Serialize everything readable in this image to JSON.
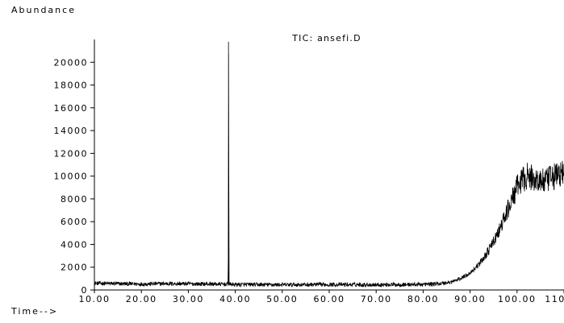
{
  "chart_data": {
    "type": "line",
    "title": "TIC: ansefi.D",
    "ylabel": "Abundance",
    "xlabel": "Time-->",
    "ylim": [
      0,
      22000
    ],
    "xlim": [
      10.0,
      110.0
    ],
    "y_ticks": [
      0,
      2000,
      4000,
      6000,
      8000,
      10000,
      12000,
      14000,
      16000,
      18000,
      20000
    ],
    "x_ticks": [
      10.0,
      20.0,
      30.0,
      40.0,
      50.0,
      60.0,
      70.0,
      80.0,
      90.0,
      100.0,
      110.0
    ],
    "x_tick_labels": [
      "10.00",
      "20.00",
      "30.00",
      "40.00",
      "50.00",
      "60.00",
      "70.00",
      "80.00",
      "90.00",
      "100.00",
      "110.00"
    ],
    "grid": false,
    "series": [
      {
        "color": "#000000",
        "x": [
          10.0,
          15.0,
          20.0,
          25.0,
          30.0,
          35.0,
          38.5,
          38.55,
          38.6,
          38.65,
          38.7,
          40.0,
          45.0,
          50.0,
          55.0,
          60.0,
          65.0,
          70.0,
          75.0,
          80.0,
          82.0,
          84.0,
          86.0,
          88.0,
          90.0,
          92.0,
          94.0,
          96.0,
          98.0,
          100.0,
          101.0,
          102.0,
          104.0,
          106.0,
          108.0,
          110.0
        ],
        "y": [
          600,
          550,
          520,
          560,
          540,
          520,
          500,
          21800,
          18800,
          520,
          500,
          480,
          470,
          460,
          470,
          480,
          470,
          460,
          470,
          490,
          520,
          580,
          700,
          1000,
          1500,
          2300,
          3500,
          5000,
          7000,
          9000,
          9600,
          10000,
          9700,
          9500,
          10000,
          10300
        ]
      }
    ]
  }
}
